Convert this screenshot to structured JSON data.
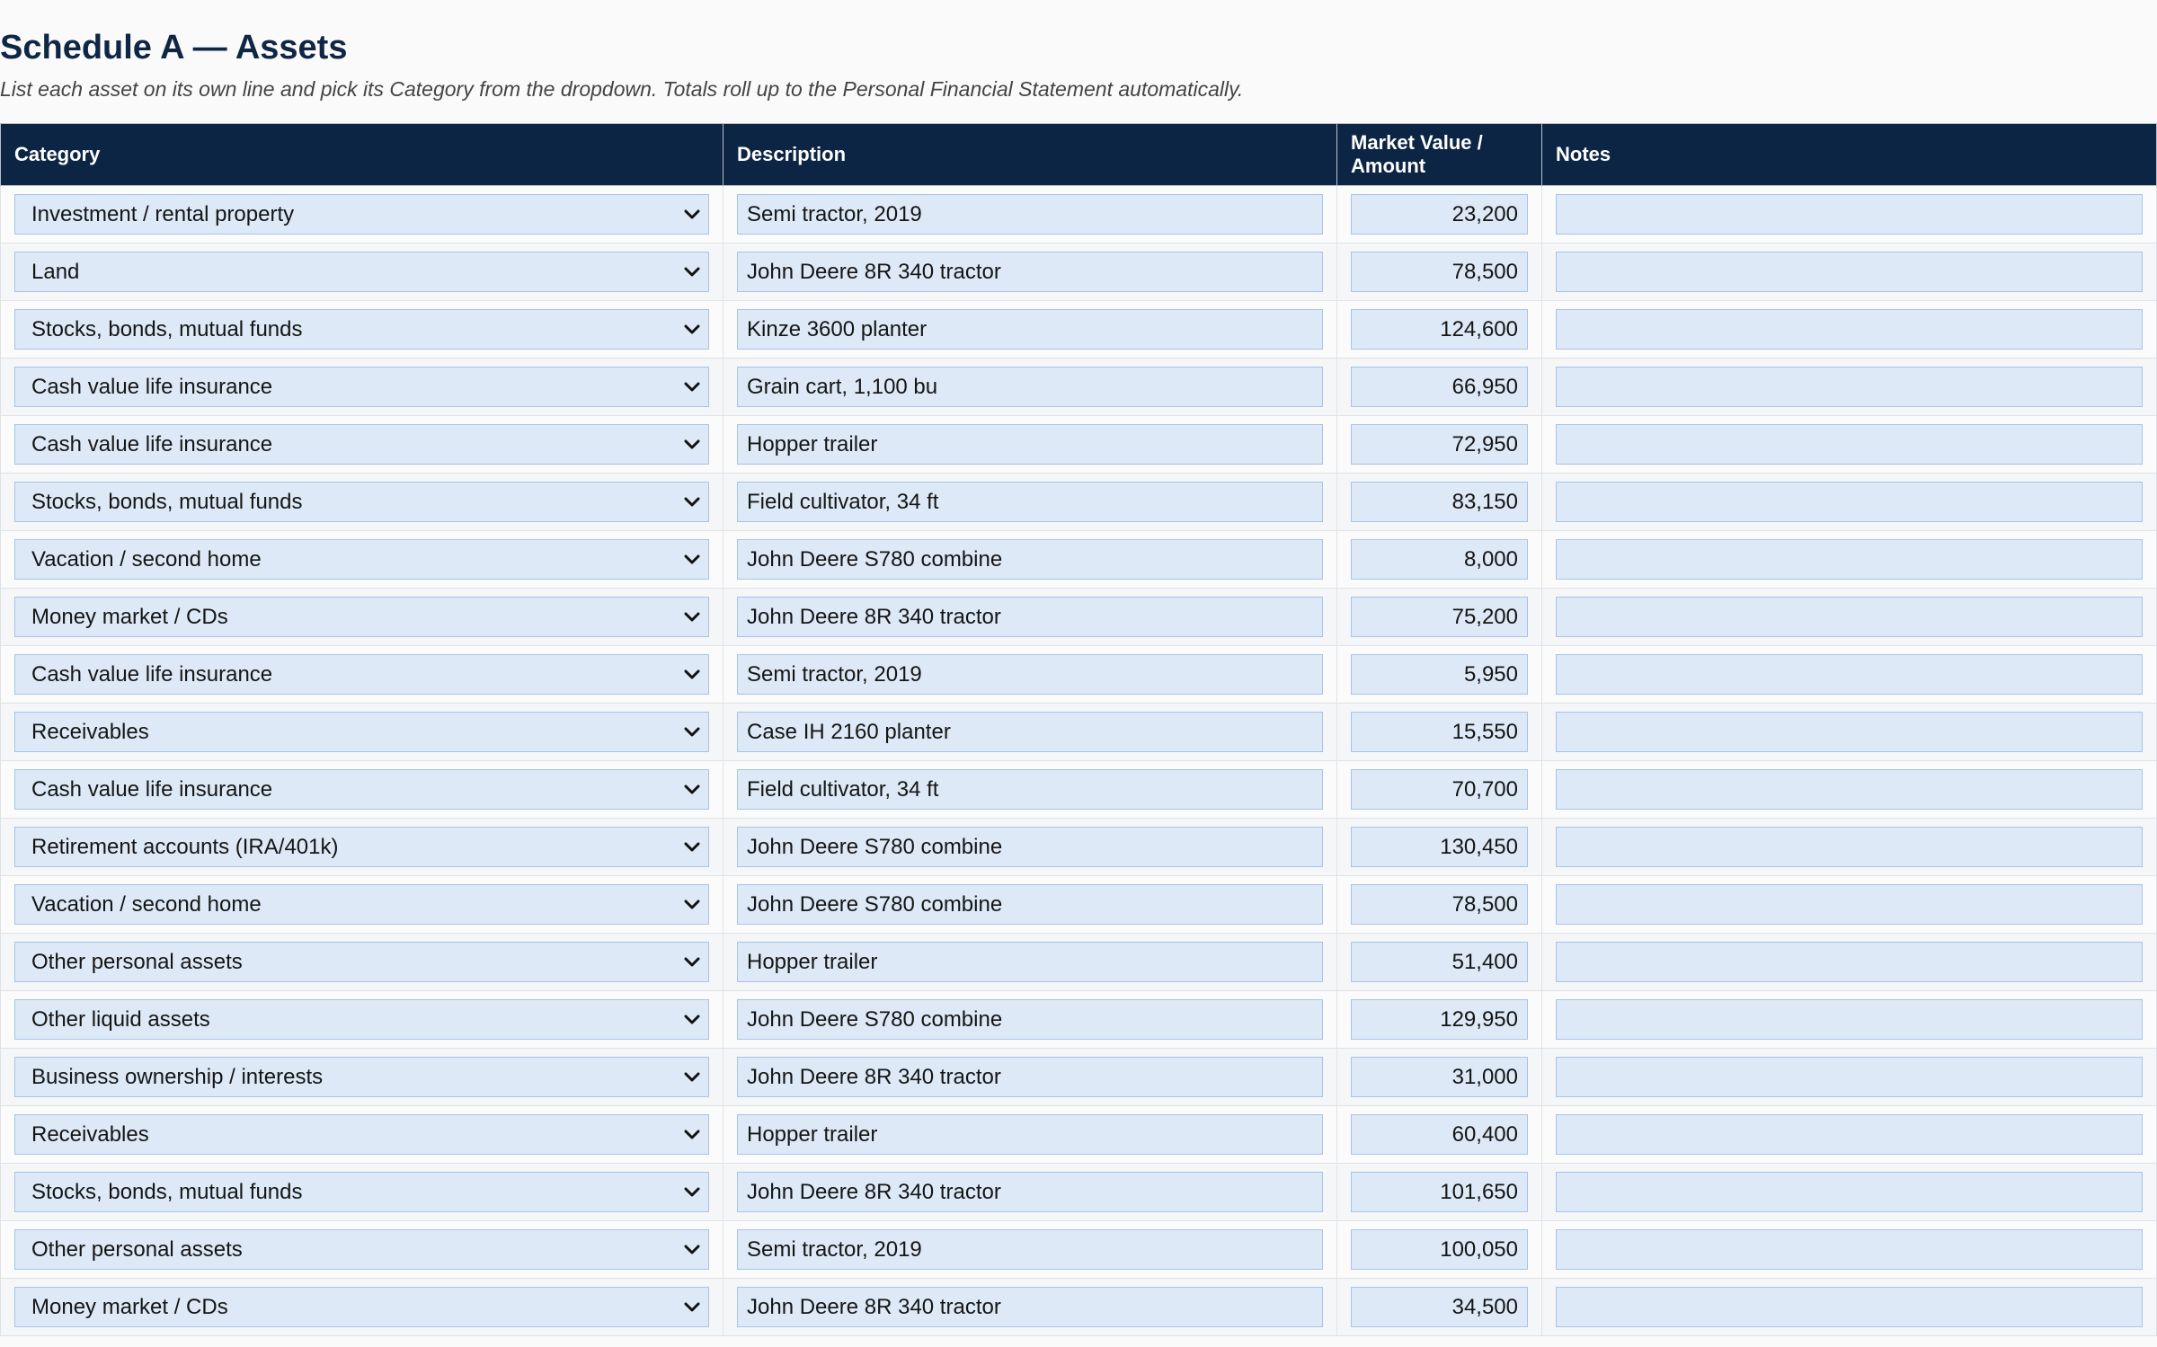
{
  "page": {
    "title": "Schedule A — Assets",
    "subtitle": "List each asset on its own line and pick its Category from the dropdown. Totals roll up to the Personal Financial Statement automatically."
  },
  "table": {
    "headers": {
      "category": "Category",
      "description": "Description",
      "amount_line1": "Market Value /",
      "amount_line2": "Amount",
      "notes": "Notes"
    },
    "rows": [
      {
        "category": "Investment / rental property",
        "description": "Semi tractor, 2019",
        "amount": "23,200",
        "notes": ""
      },
      {
        "category": "Land",
        "description": "John Deere 8R 340 tractor",
        "amount": "78,500",
        "notes": ""
      },
      {
        "category": "Stocks, bonds, mutual funds",
        "description": "Kinze 3600 planter",
        "amount": "124,600",
        "notes": ""
      },
      {
        "category": "Cash value life insurance",
        "description": "Grain cart, 1,100 bu",
        "amount": "66,950",
        "notes": ""
      },
      {
        "category": "Cash value life insurance",
        "description": "Hopper trailer",
        "amount": "72,950",
        "notes": ""
      },
      {
        "category": "Stocks, bonds, mutual funds",
        "description": "Field cultivator, 34 ft",
        "amount": "83,150",
        "notes": ""
      },
      {
        "category": "Vacation / second home",
        "description": "John Deere S780 combine",
        "amount": "8,000",
        "notes": ""
      },
      {
        "category": "Money market / CDs",
        "description": "John Deere 8R 340 tractor",
        "amount": "75,200",
        "notes": ""
      },
      {
        "category": "Cash value life insurance",
        "description": "Semi tractor, 2019",
        "amount": "5,950",
        "notes": ""
      },
      {
        "category": "Receivables",
        "description": "Case IH 2160 planter",
        "amount": "15,550",
        "notes": ""
      },
      {
        "category": "Cash value life insurance",
        "description": "Field cultivator, 34 ft",
        "amount": "70,700",
        "notes": ""
      },
      {
        "category": "Retirement accounts (IRA/401k)",
        "description": "John Deere S780 combine",
        "amount": "130,450",
        "notes": ""
      },
      {
        "category": "Vacation / second home",
        "description": "John Deere S780 combine",
        "amount": "78,500",
        "notes": ""
      },
      {
        "category": "Other personal assets",
        "description": "Hopper trailer",
        "amount": "51,400",
        "notes": ""
      },
      {
        "category": "Other liquid assets",
        "description": "John Deere S780 combine",
        "amount": "129,950",
        "notes": ""
      },
      {
        "category": "Business ownership / interests",
        "description": "John Deere 8R 340 tractor",
        "amount": "31,000",
        "notes": ""
      },
      {
        "category": "Receivables",
        "description": "Hopper trailer",
        "amount": "60,400",
        "notes": ""
      },
      {
        "category": "Stocks, bonds, mutual funds",
        "description": "John Deere 8R 340 tractor",
        "amount": "101,650",
        "notes": ""
      },
      {
        "category": "Other personal assets",
        "description": "Semi tractor, 2019",
        "amount": "100,050",
        "notes": ""
      },
      {
        "category": "Money market / CDs",
        "description": "John Deere 8R 340 tractor",
        "amount": "34,500",
        "notes": ""
      }
    ]
  },
  "icons": {
    "dropdown": "chevron-down-icon"
  },
  "colors": {
    "header_background": "#0c2544",
    "title_text": "#0f2645",
    "field_background": "#dde9f7",
    "field_border": "#a7c4e6"
  }
}
